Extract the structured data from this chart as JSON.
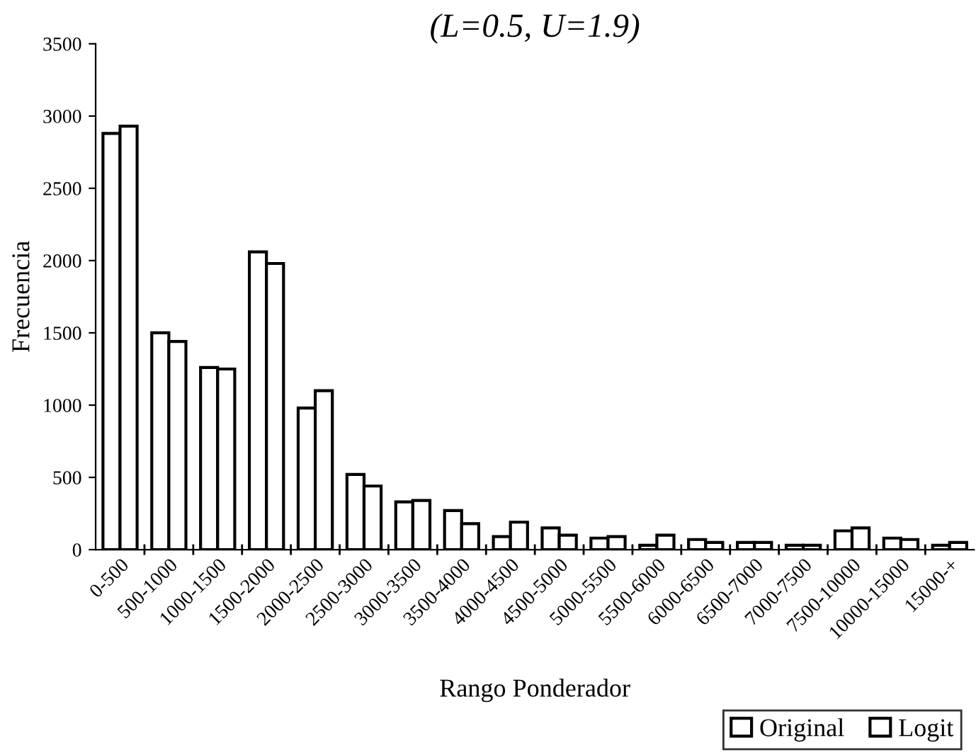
{
  "chart_data": {
    "type": "bar",
    "title": "(L=0.5, U=1.9)",
    "xlabel": "Rango Ponderador",
    "ylabel": "Frecuencia",
    "categories": [
      "0-500",
      "500-1000",
      "1000-1500",
      "1500-2000",
      "2000-2500",
      "2500-3000",
      "3000-3500",
      "3500-4000",
      "4000-4500",
      "4500-5000",
      "5000-5500",
      "5500-6000",
      "6000-6500",
      "6500-7000",
      "7000-7500",
      "7500-10000",
      "10000-15000",
      "15000-+"
    ],
    "series": [
      {
        "name": "Original",
        "color": "#ffffff",
        "values": [
          2880,
          1500,
          1260,
          2060,
          980,
          520,
          330,
          270,
          90,
          150,
          80,
          30,
          70,
          50,
          30,
          130,
          80,
          30
        ]
      },
      {
        "name": "Logit",
        "color": "#ffffff",
        "values": [
          2930,
          1440,
          1250,
          1980,
          1100,
          440,
          340,
          180,
          190,
          100,
          90,
          100,
          50,
          50,
          30,
          150,
          70,
          50
        ]
      }
    ],
    "ylim": [
      0,
      3500
    ],
    "yticks": [
      0,
      500,
      1000,
      1500,
      2000,
      2500,
      3000,
      3500
    ],
    "grid": false,
    "legend": "bottom right"
  }
}
